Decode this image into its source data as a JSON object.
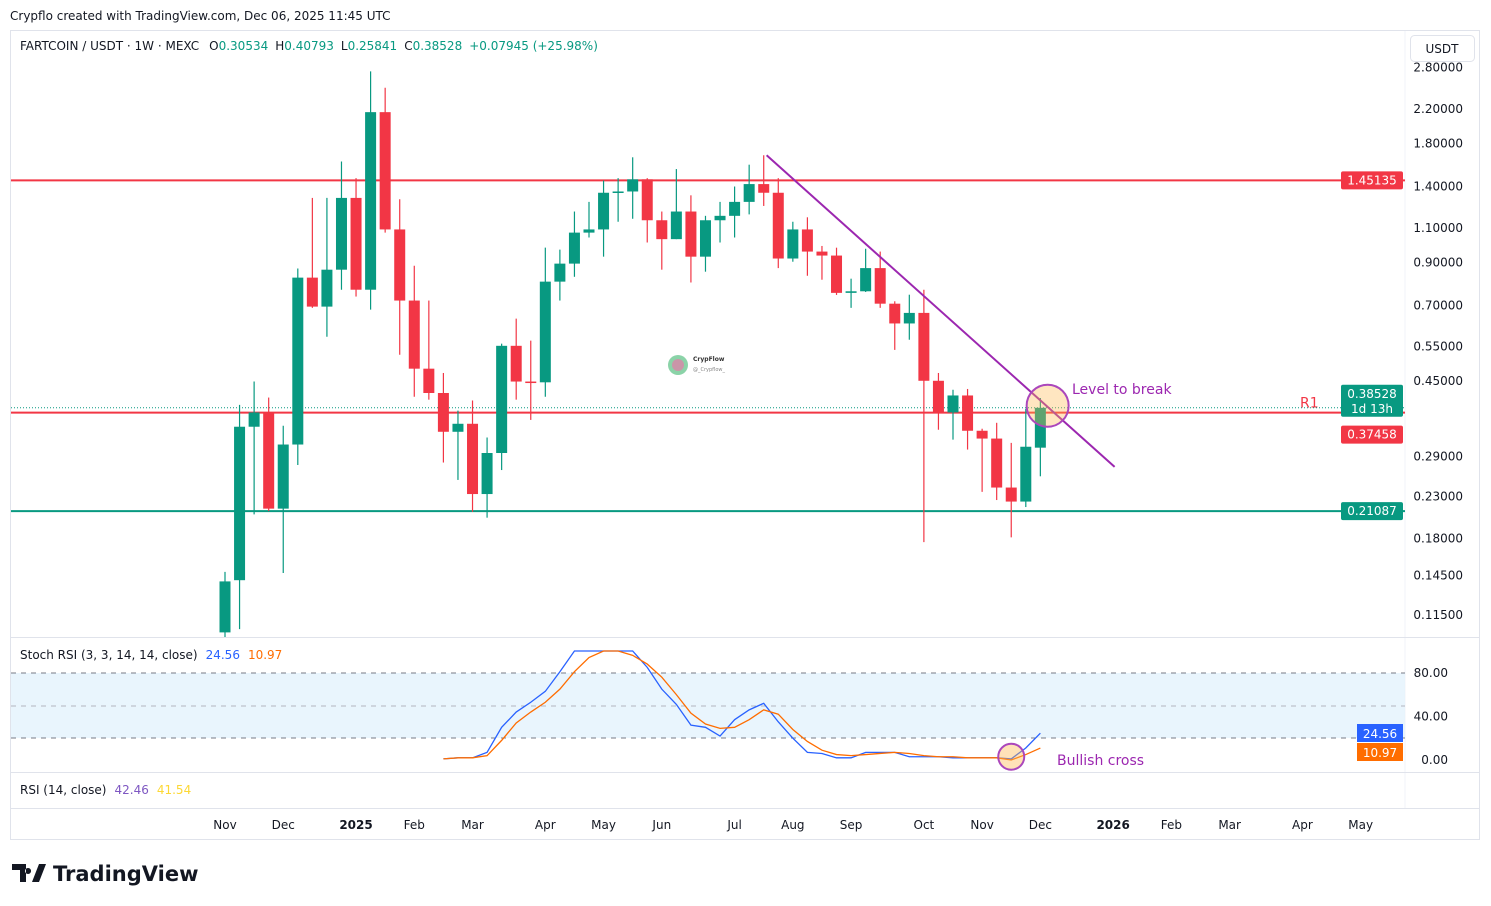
{
  "caption": "Crypflo created with TradingView.com, Dec 06, 2025 11:45 UTC",
  "legend": {
    "symbol": "FARTCOIN / USDT · 1W · MEXC",
    "o_label": "O",
    "o": "0.30534",
    "h_label": "H",
    "h": "0.40793",
    "l_label": "L",
    "l": "0.25841",
    "c_label": "C",
    "c": "0.38528",
    "change": "+0.07945 (+25.98%)"
  },
  "currency_button": "USDT",
  "watermark": {
    "name": "CrypFlow",
    "handle": "@_Crypflow_"
  },
  "branding": "TradingView",
  "colors": {
    "up": "#089981",
    "down": "#f23645",
    "trend": "#9c27b0",
    "stoch_k": "#2962ff",
    "stoch_d": "#ff6d00",
    "rsi": "#7e57c2",
    "rsi_ma": "#fdd835"
  },
  "chart_data": [
    {
      "type": "candlestick",
      "title": "FARTCOIN / USDT · 1W · MEXC",
      "scale": "log",
      "x_unit": "week index (0 = first visible candle, Nov 2024)",
      "y_ticks": [
        "2.80000",
        "2.20000",
        "1.80000",
        "1.40000",
        "1.10000",
        "0.90000",
        "0.70000",
        "0.55000",
        "0.45000",
        "0.29000",
        "0.23000",
        "0.18000",
        "0.14500",
        "0.11500"
      ],
      "x_ticks": [
        {
          "week": 0,
          "label": "Nov"
        },
        {
          "week": 4,
          "label": "Dec"
        },
        {
          "week": 9,
          "label": "2025",
          "bold": true
        },
        {
          "week": 13,
          "label": "Feb"
        },
        {
          "week": 17,
          "label": "Mar"
        },
        {
          "week": 22,
          "label": "Apr"
        },
        {
          "week": 26,
          "label": "May"
        },
        {
          "week": 30,
          "label": "Jun"
        },
        {
          "week": 35,
          "label": "Jul"
        },
        {
          "week": 39,
          "label": "Aug"
        },
        {
          "week": 43,
          "label": "Sep"
        },
        {
          "week": 48,
          "label": "Oct"
        },
        {
          "week": 52,
          "label": "Nov"
        },
        {
          "week": 56,
          "label": "Dec"
        },
        {
          "week": 61,
          "label": "2026",
          "bold": true
        },
        {
          "week": 65,
          "label": "Feb"
        },
        {
          "week": 69,
          "label": "Mar"
        },
        {
          "week": 74,
          "label": "Apr"
        },
        {
          "week": 78,
          "label": "May"
        }
      ],
      "ohlc": [
        [
          0.104,
          0.148,
          0.1,
          0.14
        ],
        [
          0.141,
          0.392,
          0.106,
          0.345
        ],
        [
          0.345,
          0.449,
          0.207,
          0.375
        ],
        [
          0.375,
          0.409,
          0.211,
          0.214
        ],
        [
          0.214,
          0.347,
          0.147,
          0.311
        ],
        [
          0.311,
          0.868,
          0.276,
          0.823
        ],
        [
          0.823,
          1.31,
          0.69,
          0.695
        ],
        [
          0.695,
          1.31,
          0.583,
          0.862
        ],
        [
          0.862,
          1.62,
          0.767,
          1.31
        ],
        [
          1.31,
          1.47,
          0.737,
          0.767
        ],
        [
          0.767,
          2.74,
          0.683,
          2.16
        ],
        [
          2.16,
          2.49,
          1.07,
          1.09
        ],
        [
          1.09,
          1.3,
          0.525,
          0.72
        ],
        [
          0.72,
          0.882,
          0.411,
          0.484
        ],
        [
          0.484,
          0.72,
          0.404,
          0.42
        ],
        [
          0.42,
          0.472,
          0.28,
          0.335
        ],
        [
          0.335,
          0.379,
          0.253,
          0.351
        ],
        [
          0.351,
          0.402,
          0.21,
          0.233
        ],
        [
          0.233,
          0.324,
          0.203,
          0.296
        ],
        [
          0.296,
          0.56,
          0.268,
          0.553
        ],
        [
          0.553,
          0.648,
          0.404,
          0.449
        ],
        [
          0.449,
          0.57,
          0.359,
          0.447
        ],
        [
          0.447,
          0.98,
          0.411,
          0.804
        ],
        [
          0.804,
          0.969,
          0.72,
          0.893
        ],
        [
          0.893,
          1.21,
          0.827,
          1.07
        ],
        [
          1.07,
          1.28,
          1.04,
          1.09
        ],
        [
          1.09,
          1.45,
          0.93,
          1.35
        ],
        [
          1.35,
          1.47,
          1.14,
          1.36
        ],
        [
          1.36,
          1.66,
          1.16,
          1.46
        ],
        [
          1.46,
          1.47,
          1.01,
          1.15
        ],
        [
          1.15,
          1.21,
          0.862,
          1.03
        ],
        [
          1.03,
          1.55,
          1.03,
          1.21
        ],
        [
          1.21,
          1.33,
          0.8,
          0.93
        ],
        [
          0.93,
          1.18,
          0.852,
          1.15
        ],
        [
          1.15,
          1.28,
          1.01,
          1.18
        ],
        [
          1.18,
          1.4,
          1.04,
          1.28
        ],
        [
          1.28,
          1.59,
          1.19,
          1.42
        ],
        [
          1.42,
          1.68,
          1.25,
          1.35
        ],
        [
          1.35,
          1.47,
          0.87,
          0.92
        ],
        [
          0.92,
          1.14,
          0.903,
          1.09
        ],
        [
          1.09,
          1.17,
          0.832,
          0.958
        ],
        [
          0.958,
          0.99,
          0.813,
          0.936
        ],
        [
          0.936,
          0.98,
          0.744,
          0.753
        ],
        [
          0.753,
          0.818,
          0.69,
          0.76
        ],
        [
          0.76,
          0.974,
          0.757,
          0.87
        ],
        [
          0.87,
          0.958,
          0.69,
          0.707
        ],
        [
          0.707,
          0.717,
          0.54,
          0.63
        ],
        [
          0.63,
          0.745,
          0.573,
          0.67
        ],
        [
          0.67,
          0.767,
          0.176,
          0.451
        ],
        [
          0.451,
          0.472,
          0.339,
          0.375
        ],
        [
          0.375,
          0.428,
          0.32,
          0.414
        ],
        [
          0.414,
          0.43,
          0.302,
          0.337
        ],
        [
          0.337,
          0.341,
          0.236,
          0.322
        ],
        [
          0.322,
          0.353,
          0.225,
          0.242
        ],
        [
          0.242,
          0.314,
          0.181,
          0.223
        ],
        [
          0.223,
          0.383,
          0.216,
          0.307
        ],
        [
          0.30534,
          0.40793,
          0.25841,
          0.38528
        ]
      ],
      "levels": [
        {
          "price": 1.45135,
          "label": "1.45135",
          "color": "#f23645"
        },
        {
          "price": 0.37458,
          "label": "0.37458",
          "color": "#f23645",
          "tag": "R1"
        },
        {
          "price": 0.21087,
          "label": "0.21087",
          "color": "#089981"
        }
      ],
      "last_price": {
        "price": 0.38528,
        "label": "0.38528",
        "countdown": "1d 13h"
      },
      "trendline": {
        "from": {
          "week": 37.2,
          "price": 1.68
        },
        "to": {
          "week": 61.1,
          "price": 0.273
        }
      },
      "annotations": [
        {
          "text": "Level to break",
          "week": 56.5,
          "price": 0.39
        }
      ]
    },
    {
      "type": "line",
      "title": "Stoch RSI (3, 3, 14, 14, close)",
      "k_value": "24.56",
      "d_value": "10.97",
      "y_ticks": [
        "80.00",
        "40.00",
        "0.00"
      ],
      "ylim": [
        0,
        100
      ],
      "band": [
        20,
        80
      ],
      "midline": 50,
      "start_week": 15,
      "series": [
        {
          "name": "K",
          "values": [
            1,
            2,
            2,
            7,
            30,
            44,
            53,
            63,
            81,
            100,
            100,
            100,
            100,
            100,
            85,
            65,
            51,
            32,
            30,
            22,
            37,
            46,
            52,
            35,
            20,
            7,
            6,
            2,
            2,
            7,
            7,
            7,
            3,
            3,
            3,
            2,
            2,
            2,
            2,
            1,
            11,
            24.56
          ]
        },
        {
          "name": "D",
          "values": [
            1,
            2,
            2,
            4,
            18,
            34,
            44,
            53,
            65,
            81,
            94,
            100,
            100,
            96,
            88,
            76,
            60,
            43,
            33,
            29,
            30,
            37,
            46,
            42,
            28,
            17,
            9,
            5,
            4,
            5,
            6,
            7,
            6,
            4,
            3,
            3,
            2,
            2,
            2,
            0,
            5,
            10.97
          ]
        }
      ],
      "annotations": [
        {
          "text": "Bullish cross",
          "week": 54,
          "value": 3
        }
      ]
    },
    {
      "type": "line",
      "title": "RSI (14, close)",
      "rsi_value": "42.46",
      "ma_value": "41.54"
    }
  ]
}
